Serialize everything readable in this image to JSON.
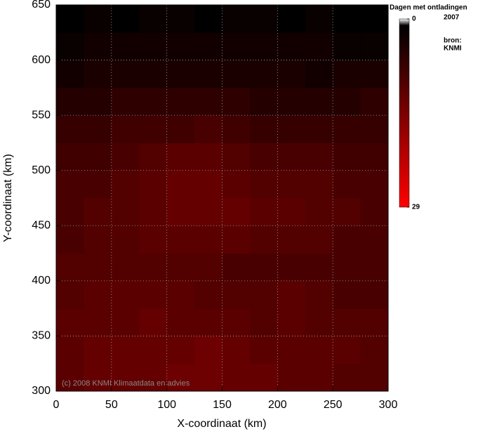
{
  "chart_data": {
    "type": "heatmap",
    "title": "Dagen met ontladingen",
    "subtitle": "2007",
    "source": "bron:",
    "source_name": "KNMI",
    "credit": "(c) 2008 KNMI Klimaatdata en advies",
    "xlabel": "X-coordinaat (km)",
    "ylabel": "Y-coordinaat (km)",
    "xlim": [
      0,
      300
    ],
    "ylim": [
      300,
      650
    ],
    "xticks": [
      0,
      50,
      100,
      150,
      200,
      250,
      300
    ],
    "yticks": [
      300,
      350,
      400,
      450,
      500,
      550,
      600,
      650
    ],
    "grid": true,
    "xbins": [
      0,
      25,
      50,
      75,
      100,
      125,
      150,
      175,
      200,
      225,
      250,
      275,
      300
    ],
    "ybins": [
      300,
      325,
      350,
      375,
      400,
      425,
      450,
      475,
      500,
      525,
      550,
      575,
      600,
      625,
      650
    ],
    "z": [
      [
        11,
        12,
        12,
        12,
        13,
        13,
        12,
        12,
        11,
        11,
        10,
        10
      ],
      [
        11,
        12,
        12,
        12,
        12,
        13,
        12,
        11,
        11,
        11,
        11,
        10
      ],
      [
        11,
        11,
        11,
        12,
        11,
        11,
        11,
        10,
        11,
        10,
        10,
        10
      ],
      [
        10,
        11,
        11,
        11,
        11,
        10,
        10,
        10,
        11,
        10,
        9,
        9
      ],
      [
        10,
        10,
        10,
        10,
        10,
        10,
        9,
        9,
        9,
        9,
        9,
        9
      ],
      [
        9,
        10,
        10,
        11,
        11,
        11,
        11,
        10,
        10,
        10,
        9,
        9
      ],
      [
        9,
        10,
        10,
        11,
        12,
        12,
        12,
        11,
        11,
        10,
        10,
        9
      ],
      [
        9,
        9,
        10,
        11,
        12,
        12,
        11,
        10,
        10,
        10,
        9,
        9
      ],
      [
        8,
        8,
        9,
        10,
        11,
        11,
        10,
        9,
        9,
        9,
        8,
        8
      ],
      [
        7,
        7,
        8,
        8,
        8,
        9,
        8,
        7,
        7,
        7,
        7,
        7
      ],
      [
        5,
        5,
        6,
        6,
        6,
        6,
        6,
        5,
        5,
        5,
        5,
        6
      ],
      [
        3,
        4,
        4,
        4,
        4,
        4,
        4,
        4,
        4,
        3,
        4,
        4
      ],
      [
        2,
        3,
        3,
        3,
        3,
        3,
        3,
        3,
        3,
        3,
        2,
        2
      ],
      [
        1,
        2,
        1,
        2,
        2,
        1,
        2,
        2,
        1,
        2,
        1,
        1
      ]
    ],
    "zlim": [
      0,
      29
    ],
    "colorbar_ticks": [
      0,
      29
    ],
    "colorscale": [
      {
        "value": 0,
        "color": "#ffffff"
      },
      {
        "value": 1,
        "color": "#000000"
      },
      {
        "value": 29,
        "color": "#ff0000"
      }
    ]
  }
}
